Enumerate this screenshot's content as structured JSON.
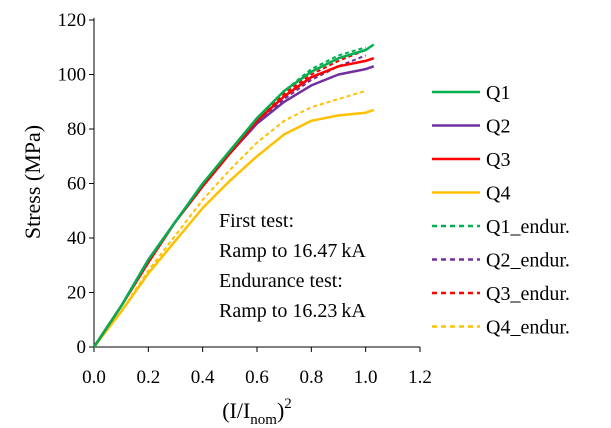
{
  "chart_data": {
    "type": "line",
    "xlabel": "(I/I",
    "xlabel_sub": "nom",
    "xlabel_close": ")",
    "xlabel_sup": "2",
    "ylabel": "Stress (MPa)",
    "xlim": [
      0,
      1.2
    ],
    "ylim": [
      0,
      120
    ],
    "xticks": [
      "0.0",
      "0.2",
      "0.4",
      "0.6",
      "0.8",
      "1.0",
      "1.2"
    ],
    "yticks": [
      "0",
      "20",
      "40",
      "60",
      "80",
      "100",
      "120"
    ],
    "grid": false,
    "legend_position": "right",
    "annotation": [
      "First test:",
      "Ramp to 16.47 kA",
      "Endurance test:",
      "Ramp to 16.23 kA"
    ],
    "series": [
      {
        "name": "Q1",
        "color": "#00b050",
        "dashed": false,
        "x": [
          0,
          0.1,
          0.2,
          0.3,
          0.4,
          0.5,
          0.6,
          0.7,
          0.8,
          0.9,
          1.0,
          1.03
        ],
        "y": [
          0,
          15,
          32,
          46,
          60,
          72,
          84,
          94,
          101,
          106,
          109,
          111
        ]
      },
      {
        "name": "Q2",
        "color": "#7030a0",
        "dashed": false,
        "x": [
          0,
          0.1,
          0.2,
          0.3,
          0.4,
          0.5,
          0.6,
          0.7,
          0.8,
          0.9,
          1.0,
          1.03
        ],
        "y": [
          0,
          15,
          32,
          46,
          59,
          71,
          82,
          90,
          96,
          100,
          102,
          103
        ]
      },
      {
        "name": "Q3",
        "color": "#ff0000",
        "dashed": false,
        "x": [
          0,
          0.1,
          0.2,
          0.3,
          0.4,
          0.5,
          0.6,
          0.7,
          0.8,
          0.9,
          1.0,
          1.03
        ],
        "y": [
          0,
          15,
          31,
          46,
          59,
          71,
          83,
          92,
          99,
          103,
          105,
          106
        ]
      },
      {
        "name": "Q4",
        "color": "#ffc000",
        "dashed": false,
        "x": [
          0,
          0.1,
          0.2,
          0.3,
          0.4,
          0.5,
          0.6,
          0.7,
          0.8,
          0.9,
          1.0,
          1.03
        ],
        "y": [
          0,
          13,
          27,
          39,
          51,
          61,
          70,
          78,
          83,
          85,
          86,
          87
        ]
      },
      {
        "name": "Q1_endur.",
        "color": "#00b050",
        "dashed": true,
        "x": [
          0,
          0.1,
          0.2,
          0.3,
          0.4,
          0.5,
          0.6,
          0.7,
          0.8,
          0.9,
          1.0
        ],
        "y": [
          0,
          15,
          32,
          46,
          60,
          72,
          84,
          94,
          102,
          107,
          110
        ]
      },
      {
        "name": "Q2_endur.",
        "color": "#7030a0",
        "dashed": true,
        "x": [
          0,
          0.1,
          0.2,
          0.3,
          0.4,
          0.5,
          0.6,
          0.7,
          0.8,
          0.9,
          1.0
        ],
        "y": [
          0,
          15,
          32,
          46,
          59,
          71,
          82,
          91,
          98,
          103,
          107
        ]
      },
      {
        "name": "Q3_endur.",
        "color": "#ff0000",
        "dashed": true,
        "x": [
          0,
          0.1,
          0.2,
          0.3,
          0.4,
          0.5,
          0.6,
          0.7,
          0.8,
          0.9,
          1.0
        ],
        "y": [
          0,
          15,
          31,
          46,
          59,
          71,
          83,
          93,
          100,
          105,
          109
        ]
      },
      {
        "name": "Q4_endur.",
        "color": "#ffc000",
        "dashed": true,
        "x": [
          0,
          0.1,
          0.2,
          0.3,
          0.4,
          0.5,
          0.6,
          0.7,
          0.8,
          0.9,
          1.0
        ],
        "y": [
          0,
          13,
          28,
          41,
          54,
          65,
          75,
          83,
          88,
          91,
          94
        ]
      }
    ]
  }
}
